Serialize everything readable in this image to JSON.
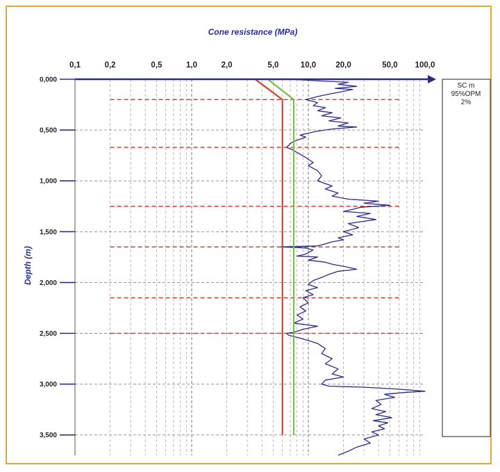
{
  "chart_data": {
    "type": "line",
    "title": "Cone resistance (MPa)",
    "xlabel": "Cone resistance (MPa)",
    "ylabel": "Depth (m)",
    "x_scale": "log",
    "xlim": [
      0.1,
      100
    ],
    "ylim": [
      0,
      3.7
    ],
    "x_tick_values": [
      0.1,
      0.2,
      0.5,
      1.0,
      2.0,
      5.0,
      10.0,
      20.0,
      50.0,
      100.0
    ],
    "x_tick_labels": [
      "0,1",
      "0,2",
      "0,5",
      "1,0",
      "2,0",
      "5,0",
      "10,0",
      "20,0",
      "50,0",
      "100,0"
    ],
    "y_tick_values": [
      0,
      0.5,
      1.0,
      1.5,
      2.0,
      2.5,
      3.0,
      3.5
    ],
    "y_tick_labels": [
      "0,000",
      "0,500",
      "1,000",
      "1,500",
      "2,000",
      "2,500",
      "3,000",
      "3,500"
    ],
    "grid": true,
    "series": [
      {
        "role": "cone_resistance",
        "color": "#2b2b8c",
        "points": [
          [
            7.0,
            0.0
          ],
          [
            14,
            0.02
          ],
          [
            22,
            0.03
          ],
          [
            18,
            0.05
          ],
          [
            26,
            0.07
          ],
          [
            17,
            0.09
          ],
          [
            24,
            0.1
          ],
          [
            20,
            0.12
          ],
          [
            16,
            0.14
          ],
          [
            12,
            0.17
          ],
          [
            9.5,
            0.2
          ],
          [
            12,
            0.23
          ],
          [
            11,
            0.26
          ],
          [
            14,
            0.28
          ],
          [
            12,
            0.31
          ],
          [
            16,
            0.33
          ],
          [
            13,
            0.36
          ],
          [
            19,
            0.38
          ],
          [
            15,
            0.41
          ],
          [
            22,
            0.43
          ],
          [
            18,
            0.46
          ],
          [
            26,
            0.47
          ],
          [
            16,
            0.49
          ],
          [
            12,
            0.51
          ],
          [
            10,
            0.53
          ],
          [
            8.5,
            0.55
          ],
          [
            9.5,
            0.57
          ],
          [
            8.0,
            0.6
          ],
          [
            7.0,
            0.63
          ],
          [
            6.8,
            0.65
          ],
          [
            6.5,
            0.67
          ],
          [
            7.2,
            0.69
          ],
          [
            8.0,
            0.72
          ],
          [
            9.5,
            0.77
          ],
          [
            11,
            0.82
          ],
          [
            10,
            0.85
          ],
          [
            12,
            0.9
          ],
          [
            13,
            0.95
          ],
          [
            12,
            1.0
          ],
          [
            16,
            1.05
          ],
          [
            14,
            1.08
          ],
          [
            18,
            1.12
          ],
          [
            16,
            1.15
          ],
          [
            22,
            1.18
          ],
          [
            40,
            1.2
          ],
          [
            30,
            1.22
          ],
          [
            50,
            1.24
          ],
          [
            28,
            1.26
          ],
          [
            24,
            1.28
          ],
          [
            20,
            1.3
          ],
          [
            34,
            1.32
          ],
          [
            26,
            1.35
          ],
          [
            38,
            1.38
          ],
          [
            22,
            1.42
          ],
          [
            27,
            1.46
          ],
          [
            20,
            1.5
          ],
          [
            24,
            1.53
          ],
          [
            18,
            1.56
          ],
          [
            20,
            1.58
          ],
          [
            16,
            1.6
          ],
          [
            14,
            1.62
          ],
          [
            12,
            1.64
          ],
          [
            5.8,
            1.65
          ],
          [
            9.5,
            1.66
          ],
          [
            11,
            1.68
          ],
          [
            9.5,
            1.72
          ],
          [
            8,
            1.74
          ],
          [
            12,
            1.75
          ],
          [
            10,
            1.78
          ],
          [
            14,
            1.8
          ],
          [
            16,
            1.82
          ],
          [
            22,
            1.85
          ],
          [
            26,
            1.87
          ],
          [
            18,
            1.89
          ],
          [
            15,
            1.92
          ],
          [
            13,
            1.95
          ],
          [
            11,
            1.98
          ],
          [
            10,
            2.02
          ],
          [
            12,
            2.05
          ],
          [
            9.5,
            2.08
          ],
          [
            11,
            2.12
          ],
          [
            9,
            2.15
          ],
          [
            10,
            2.2
          ],
          [
            8.5,
            2.24
          ],
          [
            9.5,
            2.28
          ],
          [
            8,
            2.32
          ],
          [
            9,
            2.36
          ],
          [
            7.5,
            2.4
          ],
          [
            12,
            2.43
          ],
          [
            9,
            2.46
          ],
          [
            7.5,
            2.49
          ],
          [
            6.5,
            2.5
          ],
          [
            6.8,
            2.52
          ],
          [
            8,
            2.54
          ],
          [
            10,
            2.57
          ],
          [
            12,
            2.6
          ],
          [
            14,
            2.65
          ],
          [
            13,
            2.7
          ],
          [
            16,
            2.75
          ],
          [
            14,
            2.8
          ],
          [
            18,
            2.85
          ],
          [
            16,
            2.9
          ],
          [
            20,
            2.93
          ],
          [
            14,
            2.96
          ],
          [
            13,
            3.0
          ],
          [
            15,
            3.02
          ],
          [
            30,
            3.03
          ],
          [
            60,
            3.05
          ],
          [
            100,
            3.07
          ],
          [
            70,
            3.08
          ],
          [
            45,
            3.1
          ],
          [
            55,
            3.13
          ],
          [
            38,
            3.16
          ],
          [
            42,
            3.2
          ],
          [
            35,
            3.24
          ],
          [
            46,
            3.27
          ],
          [
            38,
            3.3
          ],
          [
            52,
            3.33
          ],
          [
            36,
            3.36
          ],
          [
            48,
            3.38
          ],
          [
            40,
            3.41
          ],
          [
            45,
            3.44
          ],
          [
            35,
            3.47
          ],
          [
            40,
            3.5
          ],
          [
            30,
            3.54
          ],
          [
            34,
            3.58
          ],
          [
            26,
            3.62
          ],
          [
            22,
            3.66
          ],
          [
            18,
            3.7
          ]
        ]
      },
      {
        "role": "red_reference_line",
        "color": "#d4402a",
        "points": [
          [
            3.5,
            0.0
          ],
          [
            6.0,
            0.2
          ],
          [
            6.0,
            3.5
          ]
        ]
      },
      {
        "role": "green_reference_line",
        "color": "#7bc043",
        "points": [
          [
            4.5,
            0.0
          ],
          [
            7.5,
            0.2
          ],
          [
            7.5,
            3.5
          ]
        ]
      }
    ],
    "reference_depths": [
      0.2,
      0.67,
      1.25,
      1.65,
      2.15,
      2.5
    ],
    "reference_depth_color": "#d4402a",
    "reference_x_range": [
      0.2,
      60
    ],
    "soil_column": {
      "lines": [
        "SC m",
        "95%OPM",
        "2%"
      ],
      "depth_range": [
        0,
        3.5
      ]
    },
    "colors": {
      "axis": "#2b2b8c",
      "frame": "#e0a93a",
      "grid": "#888888"
    }
  }
}
